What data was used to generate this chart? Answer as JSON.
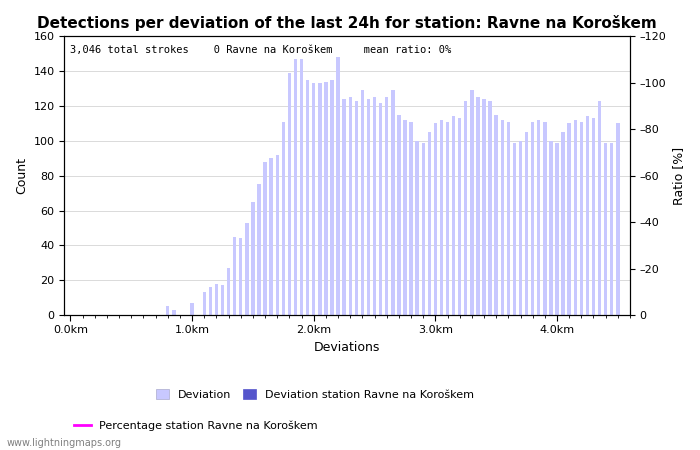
{
  "title": "Detections per deviation of the last 24h for station: Ravne na Koroškem",
  "subtitle": "3,046 total strokes    0 Ravne na Koroškem     mean ratio: 0%",
  "xlabel": "Deviations",
  "ylabel_left": "Count",
  "ylabel_right": "Ratio [%]",
  "ylim_left": [
    0,
    160
  ],
  "ylim_right": [
    0,
    120
  ],
  "yticks_left": [
    0,
    20,
    40,
    60,
    80,
    100,
    120,
    140,
    160
  ],
  "yticks_right": [
    0,
    20,
    40,
    60,
    80,
    100,
    120
  ],
  "bar_values": [
    0,
    0,
    0,
    0,
    0,
    0,
    0,
    0,
    0,
    0,
    0,
    0,
    0,
    0,
    0,
    5,
    3,
    0,
    0,
    7,
    0,
    13,
    16,
    18,
    17,
    27,
    45,
    44,
    53,
    65,
    75,
    88,
    90,
    92,
    111,
    139,
    147,
    147,
    135,
    133,
    133,
    134,
    135,
    148,
    124,
    125,
    123,
    129,
    124,
    125,
    122,
    125,
    129,
    115,
    112,
    111,
    100,
    99,
    105,
    110,
    112,
    111,
    114,
    113,
    123,
    129,
    125,
    124,
    123,
    115,
    112,
    111,
    99,
    100,
    105,
    111,
    112,
    111,
    100,
    99,
    105,
    110,
    112,
    111,
    114,
    113,
    123,
    99,
    99,
    110
  ],
  "bar_step": 0.05,
  "bar_start": 0.05,
  "bar_color": "#c8c8ff",
  "station_bar_color": "#5555cc",
  "station_bar_edgecolor": "#5555cc",
  "line_color": "#ff00ff",
  "xtick_labels": [
    "0.0km",
    "1.0km",
    "2.0km",
    "3.0km",
    "4.0km"
  ],
  "xtick_positions": [
    0.0,
    1.0,
    2.0,
    3.0,
    4.0
  ],
  "grid_color": "#cccccc",
  "background_color": "#ffffff",
  "title_fontsize": 11,
  "axis_fontsize": 9,
  "tick_fontsize": 8,
  "legend_deviation_label": "Deviation",
  "legend_station_label": "Deviation station Ravne na Koroškem",
  "legend_percentage_label": "Percentage station Ravne na Koroškem",
  "watermark": "www.lightningmaps.org",
  "xlim": [
    -0.05,
    4.6
  ],
  "bar_width": 0.028
}
